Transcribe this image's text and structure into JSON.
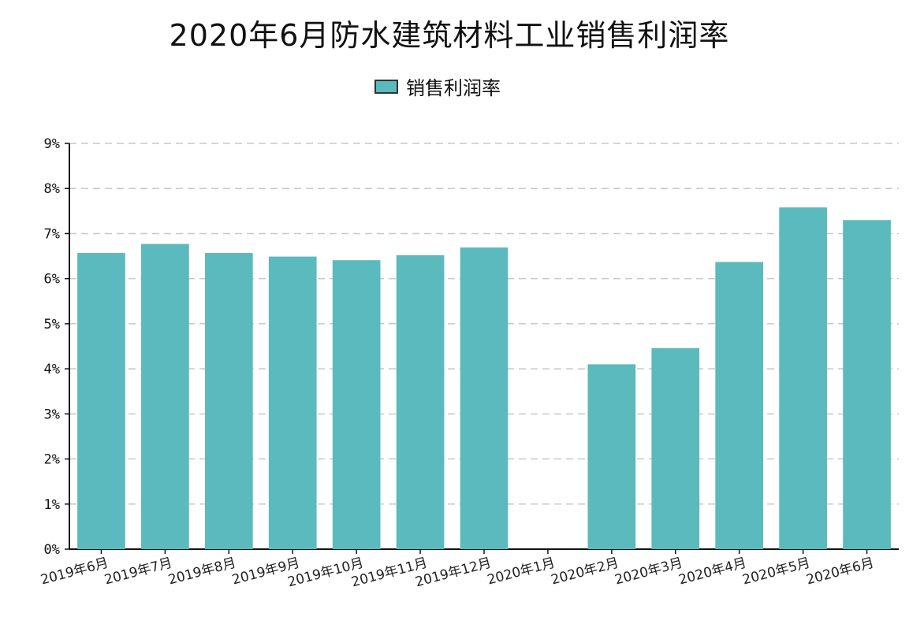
{
  "chart_data": {
    "type": "bar",
    "title": "2020年6月防水建筑材料工业销售利润率",
    "legend": {
      "placement": "top-center",
      "entries": [
        "销售利润率"
      ]
    },
    "categories": [
      "2019年6月",
      "2019年7月",
      "2019年8月",
      "2019年9月",
      "2019年10月",
      "2019年11月",
      "2019年12月",
      "2020年1月",
      "2020年2月",
      "2020年3月",
      "2020年4月",
      "2020年5月",
      "2020年6月"
    ],
    "series": [
      {
        "name": "销售利润率",
        "values": [
          6.57,
          6.77,
          6.57,
          6.49,
          6.41,
          6.52,
          6.69,
          null,
          4.1,
          4.46,
          6.37,
          7.58,
          7.3
        ]
      }
    ],
    "ylim": [
      0,
      9
    ],
    "yticks": [
      "0%",
      "1%",
      "2%",
      "3%",
      "4%",
      "5%",
      "6%",
      "7%",
      "8%",
      "9%"
    ],
    "grid": "horizontal-dashed",
    "colors": {
      "bar": "#5bbabd",
      "grid": "#c8c8c8",
      "axis": "#111111"
    }
  }
}
